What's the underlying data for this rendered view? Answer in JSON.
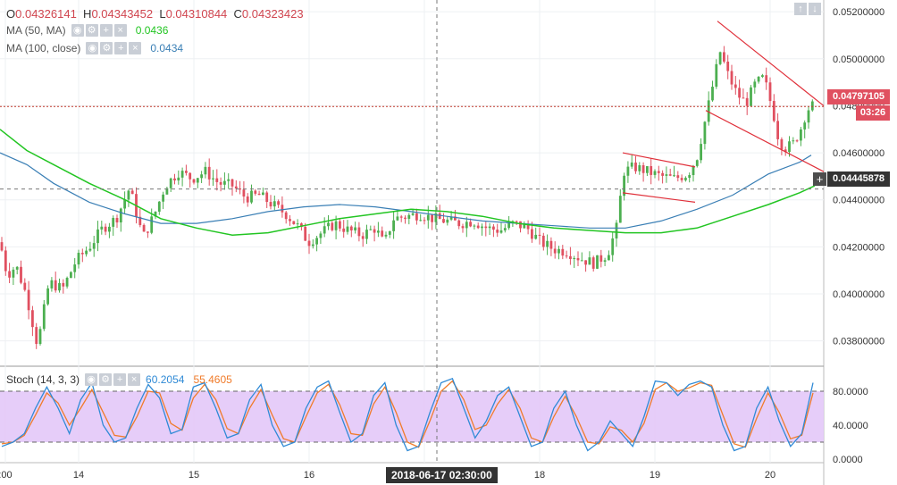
{
  "ohlc": {
    "o_label": "O",
    "o_value": "0.04326141",
    "h_label": "H",
    "h_value": "0.04343452",
    "l_label": "L",
    "l_value": "0.04310844",
    "c_label": "C",
    "c_value": "0.04323423"
  },
  "ma50": {
    "label": "MA (50, MA)",
    "value": "0.0436",
    "color": "#22c522"
  },
  "ma100": {
    "label": "MA (100, close)",
    "value": "0.0434",
    "color": "#3a7fb5"
  },
  "stoch": {
    "label": "Stoch (14, 3, 3)",
    "k_value": "60.2054",
    "d_value": "55.4605",
    "k_color": "#2f8ad6",
    "d_color": "#f07b2a"
  },
  "price_tags": {
    "last": "0.04797105",
    "countdown": "03:26",
    "crosshair": "0.04445878"
  },
  "crosshair_date": "2018-06-17 02:30:00",
  "chart_data": {
    "type": "candlestick",
    "x_tick_labels": [
      ":00",
      "14",
      "15",
      "16",
      "17",
      "18",
      "19",
      "20"
    ],
    "y_tick_labels": [
      "0.05200000",
      "0.05000000",
      "0.04800000",
      "0.04600000",
      "0.04400000",
      "0.04200000",
      "0.04000000",
      "0.03800000"
    ],
    "ylim": [
      0.037,
      0.0525
    ],
    "stoch_tick_labels": [
      "80.0000",
      "40.0000",
      "0.0000"
    ],
    "stoch_ylim": [
      0,
      100
    ],
    "stoch_band": [
      20,
      80
    ],
    "colors": {
      "up": "#4caf50",
      "down": "#e05060",
      "band": "#e3c8f8",
      "ma50": "#22c522",
      "ma100": "#3a7fb5",
      "last_price_line": "#c0392b"
    },
    "price_path": [
      [
        0,
        0.0422
      ],
      [
        8,
        0.0408
      ],
      [
        18,
        0.0412
      ],
      [
        30,
        0.0399
      ],
      [
        42,
        0.0378
      ],
      [
        55,
        0.0405
      ],
      [
        70,
        0.0402
      ],
      [
        85,
        0.0414
      ],
      [
        100,
        0.042
      ],
      [
        115,
        0.0428
      ],
      [
        130,
        0.0432
      ],
      [
        145,
        0.0445
      ],
      [
        160,
        0.0424
      ],
      [
        172,
        0.0433
      ],
      [
        185,
        0.0446
      ],
      [
        200,
        0.0452
      ],
      [
        215,
        0.0449
      ],
      [
        230,
        0.0452
      ],
      [
        245,
        0.0447
      ],
      [
        260,
        0.0446
      ],
      [
        275,
        0.0441
      ],
      [
        290,
        0.0442
      ],
      [
        305,
        0.0438
      ],
      [
        320,
        0.0434
      ],
      [
        335,
        0.0428
      ],
      [
        345,
        0.0422
      ],
      [
        360,
        0.0426
      ],
      [
        375,
        0.043
      ],
      [
        390,
        0.0427
      ],
      [
        405,
        0.0425
      ],
      [
        420,
        0.0428
      ],
      [
        430,
        0.0421
      ],
      [
        440,
        0.0432
      ],
      [
        455,
        0.0433
      ],
      [
        470,
        0.0434
      ],
      [
        485,
        0.0432
      ],
      [
        500,
        0.0431
      ],
      [
        515,
        0.043
      ],
      [
        530,
        0.0431
      ],
      [
        545,
        0.0428
      ],
      [
        560,
        0.0427
      ],
      [
        575,
        0.043
      ],
      [
        590,
        0.0428
      ],
      [
        605,
        0.0422
      ],
      [
        620,
        0.0419
      ],
      [
        635,
        0.0418
      ],
      [
        650,
        0.0415
      ],
      [
        665,
        0.0413
      ],
      [
        680,
        0.0417
      ],
      [
        690,
        0.0428
      ],
      [
        698,
        0.0452
      ],
      [
        710,
        0.0454
      ],
      [
        725,
        0.0452
      ],
      [
        740,
        0.045
      ],
      [
        755,
        0.0449
      ],
      [
        770,
        0.0451
      ],
      [
        780,
        0.0458
      ],
      [
        790,
        0.0475
      ],
      [
        798,
        0.0489
      ],
      [
        806,
        0.0503
      ],
      [
        815,
        0.0493
      ],
      [
        825,
        0.0485
      ],
      [
        835,
        0.0481
      ],
      [
        845,
        0.0489
      ],
      [
        855,
        0.0492
      ],
      [
        865,
        0.0478
      ],
      [
        872,
        0.0465
      ],
      [
        880,
        0.0462
      ],
      [
        888,
        0.0464
      ],
      [
        896,
        0.047
      ],
      [
        903,
        0.0478
      ],
      [
        908,
        0.048
      ]
    ],
    "ma50_path": [
      [
        0,
        0.047
      ],
      [
        30,
        0.0461
      ],
      [
        60,
        0.0455
      ],
      [
        100,
        0.0447
      ],
      [
        140,
        0.044
      ],
      [
        180,
        0.0432
      ],
      [
        220,
        0.0428
      ],
      [
        260,
        0.0425
      ],
      [
        300,
        0.0426
      ],
      [
        340,
        0.0429
      ],
      [
        380,
        0.0432
      ],
      [
        420,
        0.0434
      ],
      [
        460,
        0.0436
      ],
      [
        500,
        0.0435
      ],
      [
        540,
        0.0433
      ],
      [
        580,
        0.043
      ],
      [
        620,
        0.0428
      ],
      [
        660,
        0.0427
      ],
      [
        700,
        0.0426
      ],
      [
        740,
        0.0426
      ],
      [
        780,
        0.0428
      ],
      [
        820,
        0.0433
      ],
      [
        860,
        0.0438
      ],
      [
        895,
        0.0443
      ],
      [
        912,
        0.0446
      ]
    ],
    "ma100_path": [
      [
        0,
        0.046
      ],
      [
        30,
        0.0455
      ],
      [
        60,
        0.0447
      ],
      [
        100,
        0.0439
      ],
      [
        140,
        0.0434
      ],
      [
        180,
        0.043
      ],
      [
        220,
        0.043
      ],
      [
        260,
        0.0432
      ],
      [
        300,
        0.0435
      ],
      [
        340,
        0.0437
      ],
      [
        380,
        0.0438
      ],
      [
        420,
        0.0437
      ],
      [
        460,
        0.0435
      ],
      [
        500,
        0.0433
      ],
      [
        540,
        0.0431
      ],
      [
        580,
        0.043
      ],
      [
        620,
        0.0429
      ],
      [
        660,
        0.0428
      ],
      [
        700,
        0.0428
      ],
      [
        740,
        0.0431
      ],
      [
        780,
        0.0436
      ],
      [
        820,
        0.0442
      ],
      [
        860,
        0.0451
      ],
      [
        895,
        0.0456
      ],
      [
        908,
        0.0459
      ]
    ],
    "trendlines": [
      {
        "x1": 697,
        "y1": 0.046,
        "x2": 778,
        "y2": 0.0454
      },
      {
        "x1": 697,
        "y1": 0.0443,
        "x2": 778,
        "y2": 0.0439
      },
      {
        "x1": 803,
        "y1": 0.0516,
        "x2": 922,
        "y2": 0.048
      },
      {
        "x1": 790,
        "y1": 0.0478,
        "x2": 922,
        "y2": 0.0452
      }
    ],
    "stoch_k": [
      15,
      20,
      30,
      60,
      85,
      60,
      30,
      70,
      90,
      40,
      20,
      25,
      60,
      88,
      72,
      30,
      35,
      85,
      90,
      60,
      25,
      30,
      70,
      88,
      40,
      15,
      20,
      60,
      85,
      92,
      55,
      20,
      30,
      75,
      90,
      40,
      10,
      15,
      55,
      90,
      95,
      60,
      25,
      45,
      75,
      85,
      50,
      15,
      20,
      60,
      80,
      40,
      10,
      20,
      45,
      30,
      15,
      50,
      92,
      90,
      75,
      88,
      92,
      85,
      40,
      10,
      15,
      60,
      85,
      45,
      15,
      30,
      90
    ],
    "stoch_d": [
      18,
      20,
      28,
      52,
      78,
      66,
      40,
      60,
      82,
      55,
      28,
      26,
      50,
      80,
      78,
      42,
      34,
      72,
      88,
      70,
      36,
      30,
      60,
      82,
      52,
      24,
      20,
      50,
      78,
      88,
      64,
      30,
      28,
      65,
      85,
      55,
      20,
      14,
      45,
      80,
      92,
      70,
      35,
      40,
      65,
      82,
      60,
      25,
      20,
      50,
      74,
      50,
      20,
      18,
      38,
      34,
      20,
      42,
      82,
      90,
      80,
      84,
      90,
      87,
      52,
      18,
      14,
      48,
      78,
      55,
      24,
      28,
      78
    ]
  }
}
